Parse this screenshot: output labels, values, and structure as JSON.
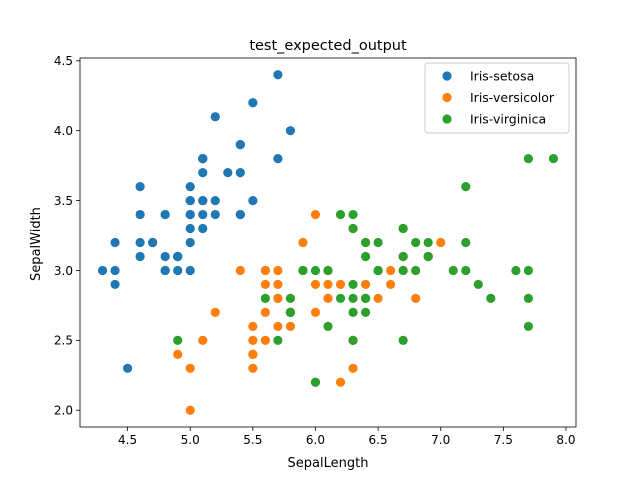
{
  "chart_data": {
    "type": "scatter",
    "title": "test_expected_output",
    "xlabel": "SepalLength",
    "ylabel": "SepalWidth",
    "xlim": [
      4.12,
      8.08
    ],
    "ylim": [
      1.88,
      4.52
    ],
    "x_ticks": [
      4.5,
      5.0,
      5.5,
      6.0,
      6.5,
      7.0,
      7.5,
      8.0
    ],
    "x_tick_labels": [
      "4.5",
      "5.0",
      "5.5",
      "6.0",
      "6.5",
      "7.0",
      "7.5",
      "8.0"
    ],
    "y_ticks": [
      2.0,
      2.5,
      3.0,
      3.5,
      4.0,
      4.5
    ],
    "y_tick_labels": [
      "2.0",
      "2.5",
      "3.0",
      "3.5",
      "4.0",
      "4.5"
    ],
    "grid": false,
    "legend": "upper-right",
    "series": [
      {
        "name": "Iris-setosa",
        "color": "#1f77b4",
        "points": [
          [
            5.1,
            3.5
          ],
          [
            4.9,
            3.0
          ],
          [
            4.7,
            3.2
          ],
          [
            4.6,
            3.1
          ],
          [
            5.0,
            3.6
          ],
          [
            5.4,
            3.9
          ],
          [
            4.6,
            3.4
          ],
          [
            5.0,
            3.4
          ],
          [
            4.4,
            2.9
          ],
          [
            4.9,
            3.1
          ],
          [
            5.4,
            3.7
          ],
          [
            4.8,
            3.4
          ],
          [
            4.8,
            3.0
          ],
          [
            4.3,
            3.0
          ],
          [
            5.8,
            4.0
          ],
          [
            5.7,
            4.4
          ],
          [
            5.4,
            3.9
          ],
          [
            5.1,
            3.5
          ],
          [
            5.7,
            3.8
          ],
          [
            5.1,
            3.8
          ],
          [
            5.4,
            3.4
          ],
          [
            5.1,
            3.7
          ],
          [
            4.6,
            3.6
          ],
          [
            5.1,
            3.3
          ],
          [
            4.8,
            3.4
          ],
          [
            5.0,
            3.0
          ],
          [
            5.0,
            3.4
          ],
          [
            5.2,
            3.5
          ],
          [
            5.2,
            3.4
          ],
          [
            4.7,
            3.2
          ],
          [
            4.8,
            3.1
          ],
          [
            5.4,
            3.4
          ],
          [
            5.2,
            4.1
          ],
          [
            5.5,
            4.2
          ],
          [
            4.9,
            3.1
          ],
          [
            5.0,
            3.2
          ],
          [
            5.5,
            3.5
          ],
          [
            4.9,
            3.1
          ],
          [
            4.4,
            3.0
          ],
          [
            5.1,
            3.4
          ],
          [
            5.0,
            3.5
          ],
          [
            4.5,
            2.3
          ],
          [
            4.4,
            3.2
          ],
          [
            5.0,
            3.5
          ],
          [
            5.1,
            3.8
          ],
          [
            4.8,
            3.0
          ],
          [
            5.1,
            3.8
          ],
          [
            4.6,
            3.2
          ],
          [
            5.3,
            3.7
          ],
          [
            5.0,
            3.3
          ]
        ]
      },
      {
        "name": "Iris-versicolor",
        "color": "#ff7f0e",
        "points": [
          [
            7.0,
            3.2
          ],
          [
            6.4,
            3.2
          ],
          [
            6.9,
            3.1
          ],
          [
            5.5,
            2.3
          ],
          [
            6.5,
            2.8
          ],
          [
            5.7,
            2.8
          ],
          [
            6.3,
            3.3
          ],
          [
            4.9,
            2.4
          ],
          [
            6.6,
            2.9
          ],
          [
            5.2,
            2.7
          ],
          [
            5.0,
            2.0
          ],
          [
            5.9,
            3.0
          ],
          [
            6.0,
            2.2
          ],
          [
            6.1,
            2.9
          ],
          [
            5.6,
            2.9
          ],
          [
            6.7,
            3.1
          ],
          [
            5.6,
            3.0
          ],
          [
            5.8,
            2.7
          ],
          [
            6.2,
            2.2
          ],
          [
            5.6,
            2.5
          ],
          [
            5.9,
            3.2
          ],
          [
            6.1,
            2.8
          ],
          [
            6.3,
            2.5
          ],
          [
            6.1,
            2.8
          ],
          [
            6.4,
            2.9
          ],
          [
            6.6,
            3.0
          ],
          [
            6.8,
            2.8
          ],
          [
            6.7,
            3.0
          ],
          [
            6.0,
            2.9
          ],
          [
            5.7,
            2.6
          ],
          [
            5.5,
            2.4
          ],
          [
            5.5,
            2.4
          ],
          [
            5.8,
            2.7
          ],
          [
            6.0,
            2.7
          ],
          [
            5.4,
            3.0
          ],
          [
            6.0,
            3.4
          ],
          [
            6.7,
            3.1
          ],
          [
            6.3,
            2.3
          ],
          [
            5.6,
            3.0
          ],
          [
            5.5,
            2.5
          ],
          [
            5.5,
            2.6
          ],
          [
            6.1,
            3.0
          ],
          [
            5.8,
            2.6
          ],
          [
            5.0,
            2.3
          ],
          [
            5.6,
            2.7
          ],
          [
            5.7,
            3.0
          ],
          [
            5.7,
            2.9
          ],
          [
            6.2,
            2.9
          ],
          [
            5.1,
            2.5
          ],
          [
            5.7,
            2.8
          ]
        ]
      },
      {
        "name": "Iris-virginica",
        "color": "#2ca02c",
        "points": [
          [
            6.3,
            3.3
          ],
          [
            5.8,
            2.7
          ],
          [
            7.1,
            3.0
          ],
          [
            6.3,
            2.9
          ],
          [
            6.5,
            3.0
          ],
          [
            7.6,
            3.0
          ],
          [
            4.9,
            2.5
          ],
          [
            7.3,
            2.9
          ],
          [
            6.7,
            2.5
          ],
          [
            7.2,
            3.6
          ],
          [
            6.5,
            3.2
          ],
          [
            6.4,
            2.7
          ],
          [
            6.8,
            3.0
          ],
          [
            5.7,
            2.5
          ],
          [
            5.8,
            2.8
          ],
          [
            6.4,
            3.2
          ],
          [
            6.5,
            3.0
          ],
          [
            7.7,
            3.8
          ],
          [
            7.7,
            2.6
          ],
          [
            6.0,
            2.2
          ],
          [
            6.9,
            3.2
          ],
          [
            5.6,
            2.8
          ],
          [
            7.7,
            2.8
          ],
          [
            6.3,
            2.7
          ],
          [
            6.7,
            3.3
          ],
          [
            7.2,
            3.2
          ],
          [
            6.2,
            2.8
          ],
          [
            6.1,
            3.0
          ],
          [
            6.4,
            2.8
          ],
          [
            7.2,
            3.0
          ],
          [
            7.4,
            2.8
          ],
          [
            7.9,
            3.8
          ],
          [
            6.4,
            2.8
          ],
          [
            6.3,
            2.8
          ],
          [
            6.1,
            2.6
          ],
          [
            7.7,
            3.0
          ],
          [
            6.3,
            3.4
          ],
          [
            6.4,
            3.1
          ],
          [
            6.0,
            3.0
          ],
          [
            6.9,
            3.1
          ],
          [
            6.7,
            3.1
          ],
          [
            6.9,
            3.1
          ],
          [
            5.8,
            2.7
          ],
          [
            6.8,
            3.2
          ],
          [
            6.7,
            3.3
          ],
          [
            6.7,
            3.0
          ],
          [
            6.3,
            2.5
          ],
          [
            6.5,
            3.0
          ],
          [
            6.2,
            3.4
          ],
          [
            5.9,
            3.0
          ]
        ]
      }
    ]
  }
}
